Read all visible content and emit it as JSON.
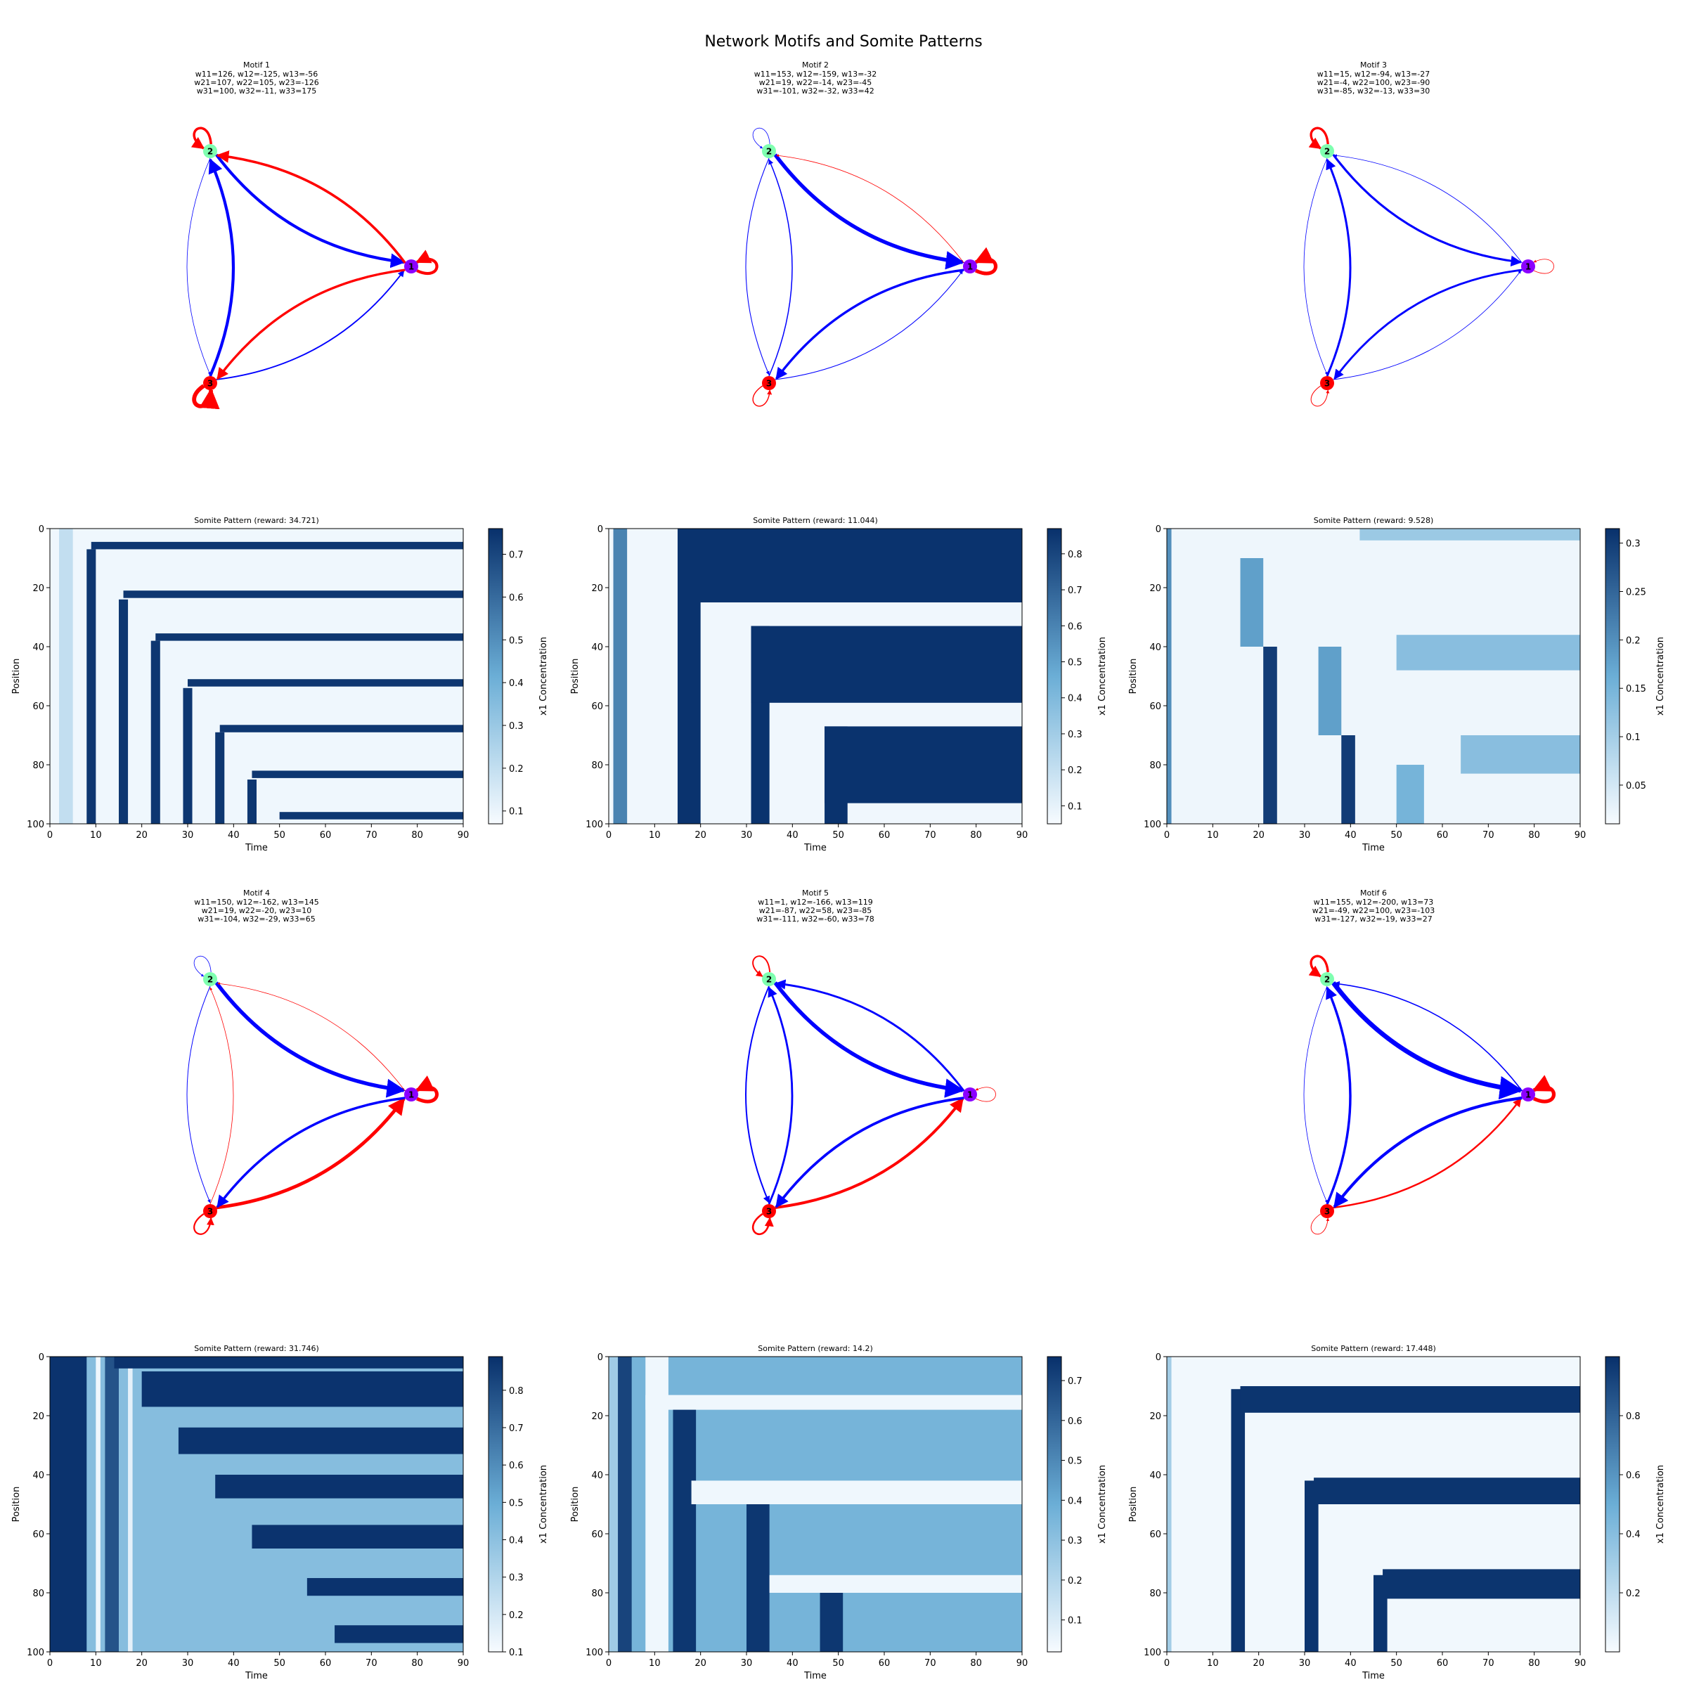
{
  "figure": {
    "title": "Network Motifs and Somite Patterns"
  },
  "colors": {
    "activation": "#ff0000",
    "repression": "#0000ff",
    "node1": "#8b00ff",
    "node2": "#7fffb0",
    "node3": "#ff0000",
    "cmap_low": "#f7fbff",
    "cmap_mid": "#6baed6",
    "cmap_high": "#08306b"
  },
  "chart_data": [
    {
      "type": "network",
      "title": "Motif 1",
      "subtitle_lines": [
        "w11=126, w12=-125, w13=-56",
        "w21=107, w22=105, w23=-126",
        "w31=100, w32=-11, w33=175"
      ],
      "nodes": [
        "1",
        "2",
        "3"
      ],
      "weights": [
        [
          126,
          -125,
          -56
        ],
        [
          107,
          105,
          -126
        ],
        [
          100,
          -11,
          175
        ]
      ]
    },
    {
      "type": "network",
      "title": "Motif 2",
      "subtitle_lines": [
        "w11=153, w12=-159, w13=-32",
        "w21=19, w22=-14, w23=-45",
        "w31=-101, w32=-32, w33=42"
      ],
      "nodes": [
        "1",
        "2",
        "3"
      ],
      "weights": [
        [
          153,
          -159,
          -32
        ],
        [
          19,
          -14,
          -45
        ],
        [
          -101,
          -32,
          42
        ]
      ]
    },
    {
      "type": "network",
      "title": "Motif 3",
      "subtitle_lines": [
        "w11=15, w12=-94, w13=-27",
        "w21=-4, w22=100, w23=-90",
        "w31=-85, w32=-13, w33=30"
      ],
      "nodes": [
        "1",
        "2",
        "3"
      ],
      "weights": [
        [
          15,
          -94,
          -27
        ],
        [
          -4,
          100,
          -90
        ],
        [
          -85,
          -13,
          30
        ]
      ]
    },
    {
      "type": "heatmap",
      "title": "Somite Pattern (reward: 34.721)",
      "xlabel": "Time",
      "ylabel": "Position",
      "xlim": [
        0,
        90
      ],
      "ylim": [
        100,
        0
      ],
      "xticks": [
        0,
        10,
        20,
        30,
        40,
        50,
        60,
        70,
        80,
        90
      ],
      "yticks": [
        0,
        20,
        40,
        60,
        80,
        100
      ],
      "colorbar": {
        "label": "x1 Concentration",
        "min": 0.07,
        "max": 0.76,
        "ticks": [
          0.1,
          0.2,
          0.3,
          0.4,
          0.5,
          0.6,
          0.7
        ]
      },
      "bands": [
        {
          "y0": 0,
          "y1": 100,
          "t0": 0,
          "t1": 90,
          "v": 0.09
        },
        {
          "y0": 0,
          "y1": 100,
          "t0": 2,
          "t1": 5,
          "v": 0.2
        },
        {
          "y0": 7,
          "y1": 100,
          "t0": 8,
          "t1": 10,
          "v": 0.74
        },
        {
          "y0": 4.5,
          "y1": 7,
          "t0": 9,
          "t1": 90,
          "v": 0.74
        },
        {
          "y0": 24,
          "y1": 100,
          "t0": 15,
          "t1": 17,
          "v": 0.74
        },
        {
          "y0": 21,
          "y1": 23.5,
          "t0": 16,
          "t1": 90,
          "v": 0.74
        },
        {
          "y0": 38,
          "y1": 100,
          "t0": 22,
          "t1": 24,
          "v": 0.74
        },
        {
          "y0": 35.5,
          "y1": 38,
          "t0": 23,
          "t1": 90,
          "v": 0.74
        },
        {
          "y0": 54,
          "y1": 100,
          "t0": 29,
          "t1": 31,
          "v": 0.74
        },
        {
          "y0": 51,
          "y1": 53.5,
          "t0": 30,
          "t1": 90,
          "v": 0.74
        },
        {
          "y0": 69,
          "y1": 100,
          "t0": 36,
          "t1": 38,
          "v": 0.74
        },
        {
          "y0": 66.5,
          "y1": 69,
          "t0": 37,
          "t1": 90,
          "v": 0.74
        },
        {
          "y0": 85,
          "y1": 100,
          "t0": 43,
          "t1": 45,
          "v": 0.74
        },
        {
          "y0": 82,
          "y1": 84.5,
          "t0": 44,
          "t1": 90,
          "v": 0.74
        },
        {
          "y0": 96,
          "y1": 98.5,
          "t0": 50,
          "t1": 90,
          "v": 0.74
        }
      ]
    },
    {
      "type": "heatmap",
      "title": "Somite Pattern (reward: 11.044)",
      "xlabel": "Time",
      "ylabel": "Position",
      "xlim": [
        0,
        90
      ],
      "ylim": [
        100,
        0
      ],
      "xticks": [
        0,
        10,
        20,
        30,
        40,
        50,
        60,
        70,
        80,
        90
      ],
      "yticks": [
        0,
        20,
        40,
        60,
        80,
        100
      ],
      "colorbar": {
        "label": "x1 Concentration",
        "min": 0.05,
        "max": 0.87,
        "ticks": [
          0.1,
          0.2,
          0.3,
          0.4,
          0.5,
          0.6,
          0.7,
          0.8
        ]
      },
      "bands": [
        {
          "y0": 0,
          "y1": 100,
          "t0": 0,
          "t1": 90,
          "v": 0.07
        },
        {
          "y0": 0,
          "y1": 100,
          "t0": 1,
          "t1": 4,
          "v": 0.6
        },
        {
          "y0": 0,
          "y1": 100,
          "t0": 15,
          "t1": 20,
          "v": 0.86
        },
        {
          "y0": 0,
          "y1": 25,
          "t0": 15,
          "t1": 90,
          "v": 0.86
        },
        {
          "y0": 33,
          "y1": 100,
          "t0": 31,
          "t1": 35,
          "v": 0.86
        },
        {
          "y0": 33,
          "y1": 59,
          "t0": 31,
          "t1": 90,
          "v": 0.86
        },
        {
          "y0": 67,
          "y1": 100,
          "t0": 47,
          "t1": 52,
          "v": 0.86
        },
        {
          "y0": 67,
          "y1": 93,
          "t0": 47,
          "t1": 90,
          "v": 0.86
        }
      ]
    },
    {
      "type": "heatmap",
      "title": "Somite Pattern (reward: 9.528)",
      "xlabel": "Time",
      "ylabel": "Position",
      "xlim": [
        0,
        90
      ],
      "ylim": [
        100,
        0
      ],
      "xticks": [
        0,
        10,
        20,
        30,
        40,
        50,
        60,
        70,
        80,
        90
      ],
      "yticks": [
        0,
        20,
        40,
        60,
        80,
        100
      ],
      "colorbar": {
        "label": "x1 Concentration",
        "min": 0.01,
        "max": 0.315,
        "ticks": [
          0.05,
          0.1,
          0.15,
          0.2,
          0.25,
          0.3
        ]
      },
      "bands": [
        {
          "y0": 0,
          "y1": 100,
          "t0": 0,
          "t1": 90,
          "v": 0.02
        },
        {
          "y0": 0,
          "y1": 100,
          "t0": 0,
          "t1": 1,
          "v": 0.2
        },
        {
          "y0": 40,
          "y1": 100,
          "t0": 21,
          "t1": 24,
          "v": 0.3
        },
        {
          "y0": 10,
          "y1": 40,
          "t0": 16,
          "t1": 21,
          "v": 0.18
        },
        {
          "y0": 70,
          "y1": 100,
          "t0": 38,
          "t1": 41,
          "v": 0.3
        },
        {
          "y0": 40,
          "y1": 70,
          "t0": 33,
          "t1": 38,
          "v": 0.18
        },
        {
          "y0": 80,
          "y1": 100,
          "t0": 50,
          "t1": 56,
          "v": 0.15
        },
        {
          "y0": 36,
          "y1": 48,
          "t0": 50,
          "t1": 90,
          "v": 0.13
        },
        {
          "y0": 70,
          "y1": 83,
          "t0": 64,
          "t1": 90,
          "v": 0.13
        },
        {
          "y0": 0,
          "y1": 4,
          "t0": 42,
          "t1": 90,
          "v": 0.11
        }
      ]
    },
    {
      "type": "network",
      "title": "Motif 4",
      "subtitle_lines": [
        "w11=150, w12=-162, w13=145",
        "w21=19, w22=-20, w23=10",
        "w31=-104, w32=-29, w33=65"
      ],
      "nodes": [
        "1",
        "2",
        "3"
      ],
      "weights": [
        [
          150,
          -162,
          145
        ],
        [
          19,
          -20,
          10
        ],
        [
          -104,
          -29,
          65
        ]
      ]
    },
    {
      "type": "network",
      "title": "Motif 5",
      "subtitle_lines": [
        "w11=1, w12=-166, w13=119",
        "w21=-87, w22=58, w23=-85",
        "w31=-111, w32=-60, w33=78"
      ],
      "nodes": [
        "1",
        "2",
        "3"
      ],
      "weights": [
        [
          1,
          -166,
          119
        ],
        [
          -87,
          58,
          -85
        ],
        [
          -111,
          -60,
          78
        ]
      ]
    },
    {
      "type": "network",
      "title": "Motif 6",
      "subtitle_lines": [
        "w11=155, w12=-200, w13=73",
        "w21=-49, w22=100, w23=-103",
        "w31=-127, w32=-19, w33=27"
      ],
      "nodes": [
        "1",
        "2",
        "3"
      ],
      "weights": [
        [
          155,
          -200,
          73
        ],
        [
          -49,
          100,
          -103
        ],
        [
          -127,
          -19,
          27
        ]
      ]
    },
    {
      "type": "heatmap",
      "title": "Somite Pattern (reward: 31.746)",
      "xlabel": "Time",
      "ylabel": "Position",
      "xlim": [
        0,
        90
      ],
      "ylim": [
        100,
        0
      ],
      "xticks": [
        0,
        10,
        20,
        30,
        40,
        50,
        60,
        70,
        80,
        90
      ],
      "yticks": [
        0,
        20,
        40,
        60,
        80,
        100
      ],
      "colorbar": {
        "label": "x1 Concentration",
        "min": 0.1,
        "max": 0.89,
        "ticks": [
          0.1,
          0.2,
          0.3,
          0.4,
          0.5,
          0.6,
          0.7,
          0.8
        ]
      },
      "bands": [
        {
          "y0": 0,
          "y1": 100,
          "t0": 0,
          "t1": 90,
          "v": 0.42
        },
        {
          "y0": 0,
          "y1": 100,
          "t0": 0,
          "t1": 8,
          "v": 0.88
        },
        {
          "y0": 0,
          "y1": 100,
          "t0": 10,
          "t1": 11,
          "v": 0.12
        },
        {
          "y0": 0,
          "y1": 100,
          "t0": 12,
          "t1": 15,
          "v": 0.78
        },
        {
          "y0": 0,
          "y1": 100,
          "t0": 17,
          "t1": 18,
          "v": 0.15
        },
        {
          "y0": 0,
          "y1": 4,
          "t0": 14,
          "t1": 90,
          "v": 0.88
        },
        {
          "y0": 5,
          "y1": 17,
          "t0": 20,
          "t1": 90,
          "v": 0.88
        },
        {
          "y0": 24,
          "y1": 33,
          "t0": 28,
          "t1": 90,
          "v": 0.88
        },
        {
          "y0": 40,
          "y1": 48,
          "t0": 36,
          "t1": 90,
          "v": 0.88
        },
        {
          "y0": 57,
          "y1": 65,
          "t0": 44,
          "t1": 90,
          "v": 0.88
        },
        {
          "y0": 75,
          "y1": 81,
          "t0": 56,
          "t1": 90,
          "v": 0.88
        },
        {
          "y0": 91,
          "y1": 97,
          "t0": 62,
          "t1": 90,
          "v": 0.88
        }
      ]
    },
    {
      "type": "heatmap",
      "title": "Somite Pattern (reward: 14.2)",
      "xlabel": "Time",
      "ylabel": "Position",
      "xlim": [
        0,
        90
      ],
      "ylim": [
        100,
        0
      ],
      "xticks": [
        0,
        10,
        20,
        30,
        40,
        50,
        60,
        70,
        80,
        90
      ],
      "yticks": [
        0,
        20,
        40,
        60,
        80,
        100
      ],
      "colorbar": {
        "label": "x1 Concentration",
        "min": 0.02,
        "max": 0.76,
        "ticks": [
          0.1,
          0.2,
          0.3,
          0.4,
          0.5,
          0.6,
          0.7
        ]
      },
      "bands": [
        {
          "y0": 0,
          "y1": 100,
          "t0": 0,
          "t1": 90,
          "v": 0.36
        },
        {
          "y0": 0,
          "y1": 100,
          "t0": 0,
          "t1": 3,
          "v": 0.25
        },
        {
          "y0": 0,
          "y1": 100,
          "t0": 2,
          "t1": 5,
          "v": 0.7
        },
        {
          "y0": 0,
          "y1": 100,
          "t0": 8,
          "t1": 13,
          "v": 0.04
        },
        {
          "y0": 13,
          "y1": 18,
          "t0": 8,
          "t1": 90,
          "v": 0.04
        },
        {
          "y0": 18,
          "y1": 100,
          "t0": 14,
          "t1": 19,
          "v": 0.74
        },
        {
          "y0": 42,
          "y1": 50,
          "t0": 18,
          "t1": 90,
          "v": 0.04
        },
        {
          "y0": 50,
          "y1": 100,
          "t0": 30,
          "t1": 35,
          "v": 0.74
        },
        {
          "y0": 74,
          "y1": 80,
          "t0": 35,
          "t1": 90,
          "v": 0.04
        },
        {
          "y0": 80,
          "y1": 100,
          "t0": 46,
          "t1": 51,
          "v": 0.74
        }
      ]
    },
    {
      "type": "heatmap",
      "title": "Somite Pattern (reward: 17.448)",
      "xlabel": "Time",
      "ylabel": "Position",
      "xlim": [
        0,
        90
      ],
      "ylim": [
        100,
        0
      ],
      "xticks": [
        0,
        10,
        20,
        30,
        40,
        50,
        60,
        70,
        80,
        90
      ],
      "yticks": [
        0,
        20,
        40,
        60,
        80,
        100
      ],
      "colorbar": {
        "label": "x1 Concentration",
        "min": 0.0,
        "max": 1.0,
        "ticks": [
          0.2,
          0.4,
          0.6,
          0.8
        ]
      },
      "bands": [
        {
          "y0": 0,
          "y1": 100,
          "t0": 0,
          "t1": 90,
          "v": 0.02
        },
        {
          "y0": 0,
          "y1": 100,
          "t0": 0,
          "t1": 1,
          "v": 0.3
        },
        {
          "y0": 11,
          "y1": 100,
          "t0": 14,
          "t1": 17,
          "v": 0.98
        },
        {
          "y0": 10,
          "y1": 19,
          "t0": 16,
          "t1": 90,
          "v": 0.98
        },
        {
          "y0": 42,
          "y1": 100,
          "t0": 30,
          "t1": 33,
          "v": 0.98
        },
        {
          "y0": 41,
          "y1": 50,
          "t0": 32,
          "t1": 90,
          "v": 0.98
        },
        {
          "y0": 74,
          "y1": 100,
          "t0": 45,
          "t1": 48,
          "v": 0.98
        },
        {
          "y0": 72,
          "y1": 82,
          "t0": 47,
          "t1": 90,
          "v": 0.98
        }
      ]
    }
  ]
}
